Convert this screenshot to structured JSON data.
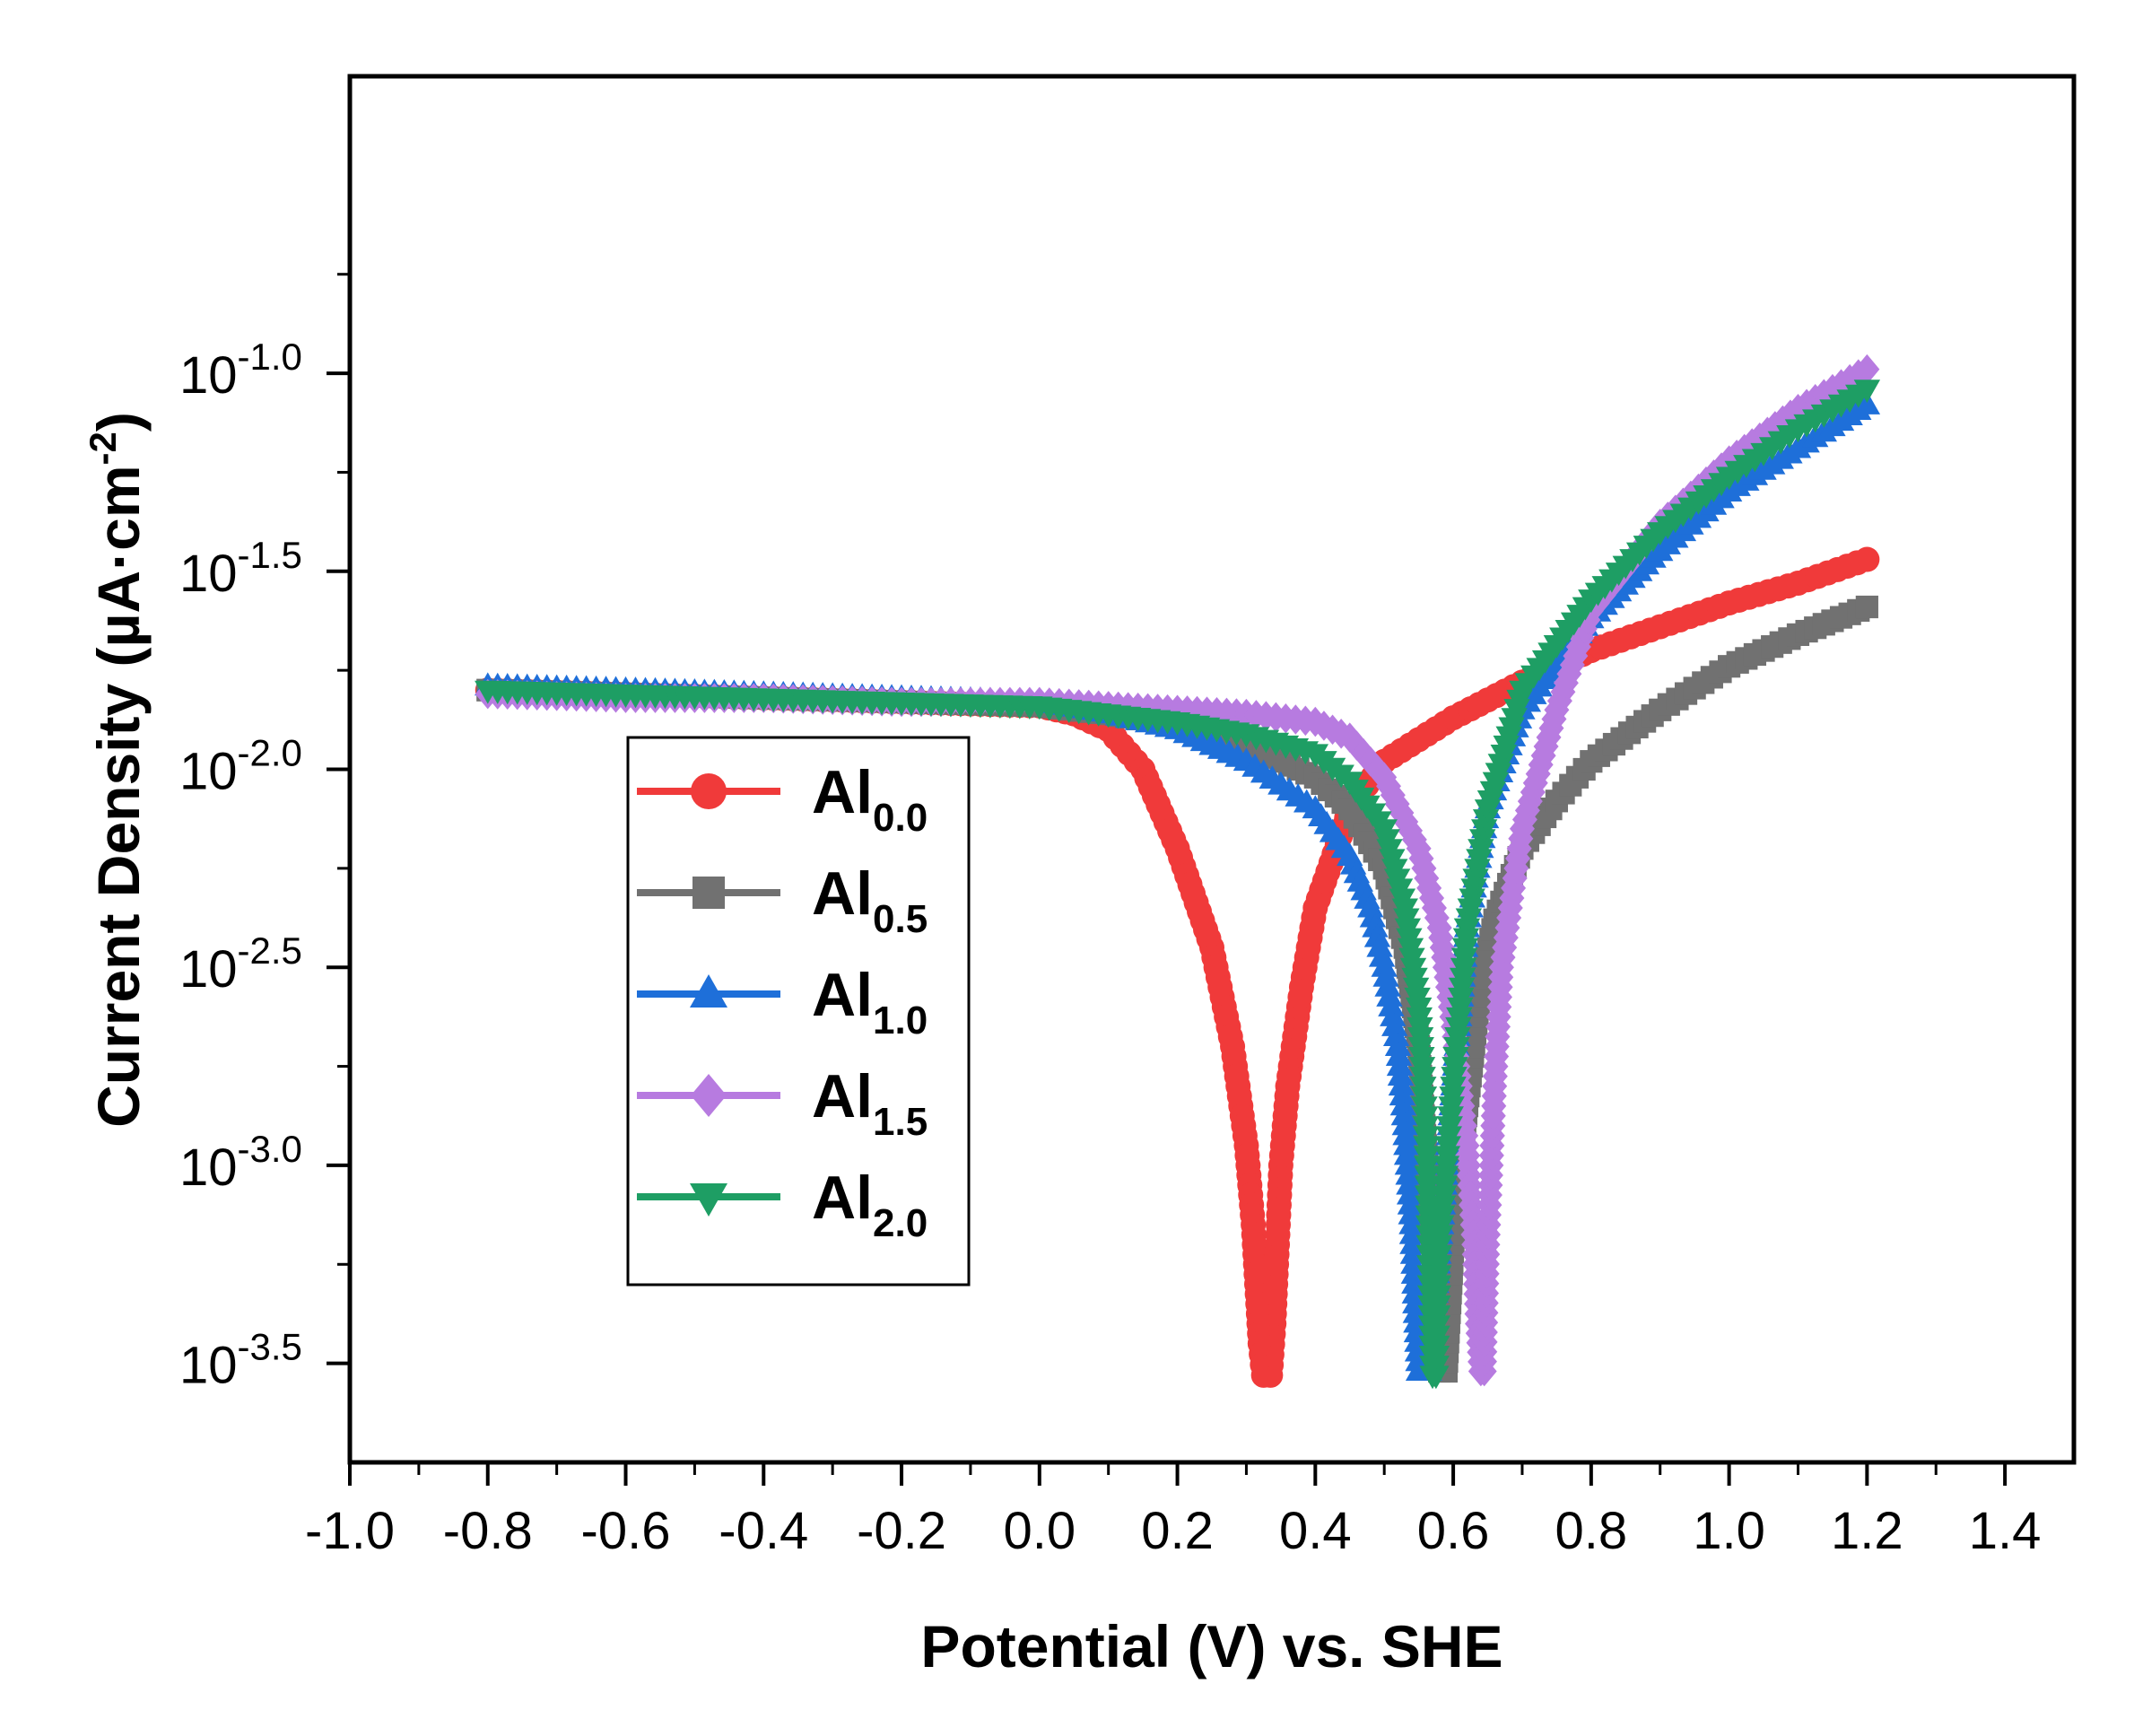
{
  "chart_data": {
    "type": "line",
    "title": "",
    "xlabel": "Potential  (V)  vs. SHE",
    "ylabel": {
      "main": "Current Density (µA·cm",
      "sup": "-2",
      "close": ")"
    },
    "xlim": [
      -1.0,
      1.5
    ],
    "ylim": [
      -3.75,
      -0.25
    ],
    "x_ticks": [
      -1.0,
      -0.8,
      -0.6,
      -0.4,
      -0.2,
      0.0,
      0.2,
      0.4,
      0.6,
      0.8,
      1.0,
      1.2,
      1.4
    ],
    "x_tick_labels": [
      "-1.0",
      "-0.8",
      "-0.6",
      "-0.4",
      "-0.2",
      "0.0",
      "0.2",
      "0.4",
      "0.6",
      "0.8",
      "1.0",
      "1.2",
      "1.4"
    ],
    "y_ticks": [
      -1.0,
      -1.5,
      -2.0,
      -2.5,
      -3.0,
      -3.5
    ],
    "y_tick_labels": [
      {
        "base": "10",
        "exp": "-1.0"
      },
      {
        "base": "10",
        "exp": "-1.5"
      },
      {
        "base": "10",
        "exp": "-2.0"
      },
      {
        "base": "10",
        "exp": "-2.5"
      },
      {
        "base": "10",
        "exp": "-3.0"
      },
      {
        "base": "10",
        "exp": "-3.5"
      }
    ],
    "legend_position": "center-left",
    "series": [
      {
        "name": "Al0.0",
        "label_main": "Al",
        "label_sub": "0.0",
        "color": "#F03A3A",
        "marker": "circle",
        "cathodic": [
          [
            -0.8,
            -1.8
          ],
          [
            -0.6,
            -1.81
          ],
          [
            -0.4,
            -1.82
          ],
          [
            -0.2,
            -1.83
          ],
          [
            0.0,
            -1.84
          ],
          [
            0.05,
            -1.86
          ],
          [
            0.1,
            -1.9
          ],
          [
            0.15,
            -2.0
          ],
          [
            0.2,
            -2.2
          ],
          [
            0.25,
            -2.45
          ],
          [
            0.28,
            -2.7
          ],
          [
            0.3,
            -2.95
          ],
          [
            0.31,
            -3.15
          ],
          [
            0.315,
            -3.3
          ],
          [
            0.32,
            -3.45
          ],
          [
            0.325,
            -3.53
          ]
        ],
        "anodic": [
          [
            0.335,
            -3.53
          ],
          [
            0.34,
            -3.4
          ],
          [
            0.345,
            -3.2
          ],
          [
            0.35,
            -3.0
          ],
          [
            0.36,
            -2.8
          ],
          [
            0.38,
            -2.55
          ],
          [
            0.4,
            -2.35
          ],
          [
            0.45,
            -2.1
          ],
          [
            0.5,
            -1.98
          ],
          [
            0.6,
            -1.87
          ],
          [
            0.7,
            -1.78
          ],
          [
            0.8,
            -1.7
          ],
          [
            0.9,
            -1.64
          ],
          [
            1.0,
            -1.58
          ],
          [
            1.1,
            -1.53
          ],
          [
            1.2,
            -1.47
          ]
        ]
      },
      {
        "name": "Al0.5",
        "label_main": "Al",
        "label_sub": "0.5",
        "color": "#717171",
        "marker": "square",
        "cathodic": [
          [
            -0.8,
            -1.8
          ],
          [
            -0.6,
            -1.81
          ],
          [
            -0.4,
            -1.82
          ],
          [
            -0.2,
            -1.83
          ],
          [
            0.0,
            -1.84
          ],
          [
            0.1,
            -1.86
          ],
          [
            0.2,
            -1.89
          ],
          [
            0.3,
            -1.94
          ],
          [
            0.4,
            -2.02
          ],
          [
            0.45,
            -2.1
          ],
          [
            0.5,
            -2.25
          ],
          [
            0.53,
            -2.45
          ],
          [
            0.55,
            -2.7
          ],
          [
            0.56,
            -2.95
          ],
          [
            0.57,
            -3.2
          ],
          [
            0.575,
            -3.4
          ],
          [
            0.58,
            -3.52
          ]
        ],
        "anodic": [
          [
            0.59,
            -3.52
          ],
          [
            0.6,
            -3.2
          ],
          [
            0.62,
            -2.85
          ],
          [
            0.64,
            -2.55
          ],
          [
            0.66,
            -2.38
          ],
          [
            0.7,
            -2.2
          ],
          [
            0.75,
            -2.08
          ],
          [
            0.8,
            -1.98
          ],
          [
            0.9,
            -1.85
          ],
          [
            1.0,
            -1.74
          ],
          [
            1.1,
            -1.66
          ],
          [
            1.2,
            -1.59
          ]
        ]
      },
      {
        "name": "Al1.0",
        "label_main": "Al",
        "label_sub": "1.0",
        "color": "#1E6FD9",
        "marker": "triangle-up",
        "cathodic": [
          [
            -0.8,
            -1.79
          ],
          [
            -0.6,
            -1.8
          ],
          [
            -0.4,
            -1.81
          ],
          [
            -0.2,
            -1.82
          ],
          [
            0.0,
            -1.83
          ],
          [
            0.1,
            -1.86
          ],
          [
            0.2,
            -1.9
          ],
          [
            0.3,
            -1.98
          ],
          [
            0.4,
            -2.1
          ],
          [
            0.45,
            -2.22
          ],
          [
            0.48,
            -2.35
          ],
          [
            0.5,
            -2.5
          ],
          [
            0.52,
            -2.7
          ],
          [
            0.53,
            -2.9
          ],
          [
            0.54,
            -3.15
          ],
          [
            0.545,
            -3.35
          ],
          [
            0.55,
            -3.52
          ]
        ],
        "anodic": [
          [
            0.565,
            -3.52
          ],
          [
            0.58,
            -3.2
          ],
          [
            0.6,
            -2.8
          ],
          [
            0.62,
            -2.4
          ],
          [
            0.65,
            -2.1
          ],
          [
            0.7,
            -1.85
          ],
          [
            0.8,
            -1.62
          ],
          [
            0.9,
            -1.45
          ],
          [
            1.0,
            -1.3
          ],
          [
            1.1,
            -1.19
          ],
          [
            1.2,
            -1.08
          ]
        ]
      },
      {
        "name": "Al1.5",
        "label_main": "Al",
        "label_sub": "1.5",
        "color": "#B77BE0",
        "marker": "diamond",
        "cathodic": [
          [
            -0.8,
            -1.81
          ],
          [
            -0.6,
            -1.82
          ],
          [
            -0.4,
            -1.82
          ],
          [
            -0.2,
            -1.83
          ],
          [
            0.0,
            -1.83
          ],
          [
            0.1,
            -1.84
          ],
          [
            0.2,
            -1.85
          ],
          [
            0.3,
            -1.86
          ],
          [
            0.4,
            -1.88
          ],
          [
            0.45,
            -1.92
          ],
          [
            0.5,
            -2.02
          ],
          [
            0.55,
            -2.2
          ],
          [
            0.58,
            -2.4
          ],
          [
            0.6,
            -2.65
          ],
          [
            0.62,
            -2.95
          ],
          [
            0.63,
            -3.2
          ],
          [
            0.635,
            -3.4
          ],
          [
            0.64,
            -3.52
          ]
        ],
        "anodic": [
          [
            0.645,
            -3.52
          ],
          [
            0.65,
            -3.2
          ],
          [
            0.66,
            -2.8
          ],
          [
            0.67,
            -2.5
          ],
          [
            0.7,
            -2.15
          ],
          [
            0.75,
            -1.85
          ],
          [
            0.8,
            -1.6
          ],
          [
            0.9,
            -1.38
          ],
          [
            1.0,
            -1.22
          ],
          [
            1.1,
            -1.09
          ],
          [
            1.2,
            -0.99
          ]
        ]
      },
      {
        "name": "Al2.0",
        "label_main": "Al",
        "label_sub": "2.0",
        "color": "#1E9E64",
        "marker": "triangle-down",
        "cathodic": [
          [
            -0.8,
            -1.8
          ],
          [
            -0.6,
            -1.81
          ],
          [
            -0.4,
            -1.82
          ],
          [
            -0.2,
            -1.83
          ],
          [
            0.0,
            -1.84
          ],
          [
            0.1,
            -1.86
          ],
          [
            0.2,
            -1.88
          ],
          [
            0.3,
            -1.91
          ],
          [
            0.4,
            -1.96
          ],
          [
            0.45,
            -2.03
          ],
          [
            0.5,
            -2.15
          ],
          [
            0.53,
            -2.35
          ],
          [
            0.55,
            -2.6
          ],
          [
            0.56,
            -2.9
          ],
          [
            0.565,
            -3.2
          ],
          [
            0.57,
            -3.53
          ]
        ],
        "anodic": [
          [
            0.575,
            -3.53
          ],
          [
            0.58,
            -3.2
          ],
          [
            0.6,
            -2.8
          ],
          [
            0.62,
            -2.4
          ],
          [
            0.65,
            -2.1
          ],
          [
            0.7,
            -1.8
          ],
          [
            0.8,
            -1.57
          ],
          [
            0.9,
            -1.4
          ],
          [
            1.0,
            -1.26
          ],
          [
            1.1,
            -1.14
          ],
          [
            1.2,
            -1.04
          ]
        ]
      }
    ]
  }
}
